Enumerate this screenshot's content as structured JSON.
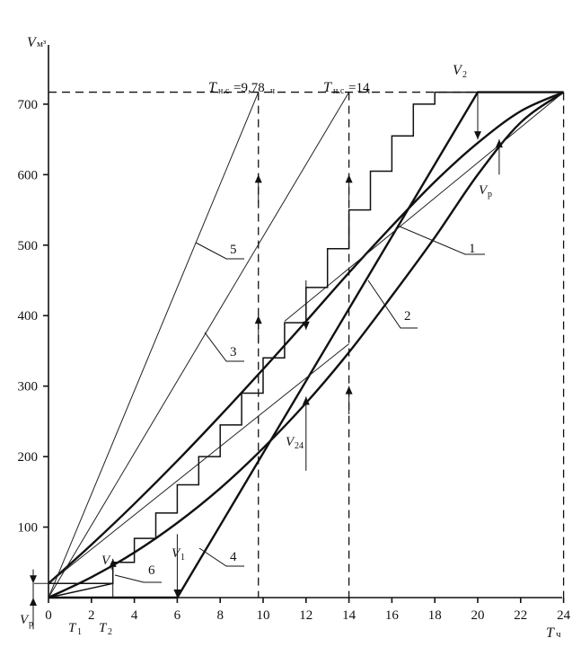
{
  "chart_data": {
    "type": "line",
    "title": "",
    "x_axis": {
      "label": "T",
      "unit": "ч",
      "range": [
        0,
        24
      ],
      "ticks": [
        0,
        2,
        4,
        6,
        8,
        10,
        12,
        14,
        16,
        18,
        20,
        22,
        24
      ]
    },
    "y_axis": {
      "label": "V",
      "unit": "м³",
      "range": [
        0,
        720
      ],
      "ticks": [
        100,
        200,
        300,
        400,
        500,
        600,
        700
      ]
    },
    "grid": false,
    "reference_levels": {
      "v_max": 717,
      "v_initial": 20
    },
    "annotations": {
      "t_ns_1": {
        "label": "T",
        "sub": "н.с",
        "text": "=9,78",
        "unit": "ч",
        "x": 9.78
      },
      "t_ns_2": {
        "label": "T",
        "sub": "н.с",
        "text": "=14",
        "unit": "ч",
        "x": 14
      },
      "v2": {
        "label": "V",
        "sub": "2",
        "x": 20
      },
      "vp_top": {
        "label": "V",
        "sub": "р",
        "x": 21
      },
      "v24": {
        "label": "V",
        "sub": "24",
        "x": 12
      },
      "v1": {
        "label": "V",
        "sub": "1",
        "x": 6
      },
      "vp_left": {
        "label": "V",
        "sub": "р"
      },
      "vp_small": {
        "label": "V",
        "sub": "р",
        "x": 3
      },
      "t1": {
        "label": "T",
        "sub": "1",
        "x": 1.2
      },
      "t2": {
        "label": "T",
        "sub": "2",
        "x": 2.2
      }
    },
    "series": [
      {
        "name": "1",
        "x": [
          0,
          2,
          4,
          6,
          8,
          10,
          12,
          14,
          16,
          18,
          20,
          22,
          24
        ],
        "values": [
          0,
          29,
          64,
          106,
          155,
          212,
          276,
          348,
          428,
          511,
          600,
          674,
          717
        ]
      },
      {
        "name": "2",
        "x": [
          0,
          2,
          4,
          6,
          8,
          10,
          12,
          14,
          16,
          18,
          20,
          22,
          24
        ],
        "values": [
          20,
          75,
          133,
          194,
          258,
          324,
          392,
          461,
          527,
          590,
          645,
          690,
          717
        ]
      },
      {
        "name": "3",
        "x": [
          0,
          14
        ],
        "values": [
          0,
          717
        ]
      },
      {
        "name": "4",
        "x": [
          0,
          6,
          20,
          24
        ],
        "values": [
          0,
          0,
          717,
          717
        ]
      },
      {
        "name": "5",
        "x": [
          0,
          9.78
        ],
        "values": [
          0,
          717
        ]
      },
      {
        "name": "6",
        "x": [
          0,
          3
        ],
        "values": [
          0,
          20
        ]
      }
    ],
    "tangents": [
      {
        "x": [
          11,
          24
        ],
        "values": [
          392,
          717
        ]
      },
      {
        "x": [
          0,
          14
        ],
        "values": [
          20,
          360
        ]
      }
    ],
    "staircase": {
      "step_hours": 1,
      "x": [
        0,
        1,
        2,
        3,
        4,
        5,
        6,
        7,
        8,
        9,
        10,
        11,
        12,
        13,
        14,
        15,
        16,
        17,
        18,
        19,
        20,
        21,
        22,
        23,
        24
      ],
      "values": [
        20,
        20,
        20,
        50,
        84,
        120,
        160,
        200,
        245,
        290,
        340,
        390,
        440,
        495,
        550,
        605,
        655,
        700,
        717,
        717,
        717,
        717,
        717,
        717,
        717
      ]
    },
    "dropline_x": [
      9.78,
      14,
      24
    ]
  }
}
